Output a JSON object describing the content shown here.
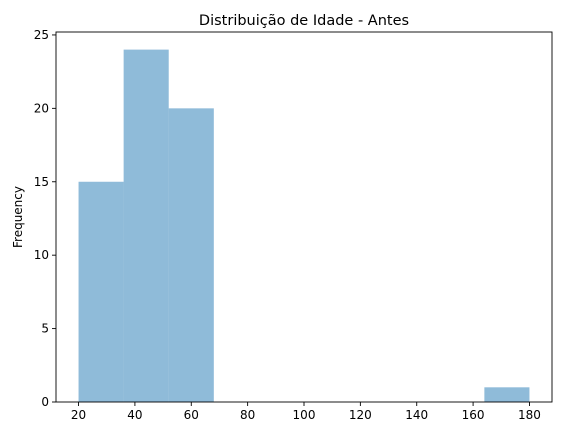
{
  "chart_data": {
    "type": "bar",
    "title": "Distribuição de Idade - Antes",
    "xlabel": "",
    "ylabel": "Frequency",
    "xlim": [
      12,
      188
    ],
    "ylim": [
      0,
      25.2
    ],
    "grid": false,
    "legend": "none",
    "bar_color": "#1f77b4",
    "bar_opacity": 0.5,
    "bins": [
      {
        "start": 20,
        "end": 36,
        "count": 15
      },
      {
        "start": 36,
        "end": 52,
        "count": 24
      },
      {
        "start": 52,
        "end": 68,
        "count": 20
      },
      {
        "start": 68,
        "end": 84,
        "count": 0
      },
      {
        "start": 84,
        "end": 100,
        "count": 0
      },
      {
        "start": 100,
        "end": 116,
        "count": 0
      },
      {
        "start": 116,
        "end": 132,
        "count": 0
      },
      {
        "start": 132,
        "end": 148,
        "count": 0
      },
      {
        "start": 148,
        "end": 164,
        "count": 0
      },
      {
        "start": 164,
        "end": 180,
        "count": 1
      }
    ],
    "x_ticks": [
      20,
      40,
      60,
      80,
      100,
      120,
      140,
      160,
      180
    ],
    "y_ticks": [
      0,
      5,
      10,
      15,
      20,
      25
    ]
  }
}
